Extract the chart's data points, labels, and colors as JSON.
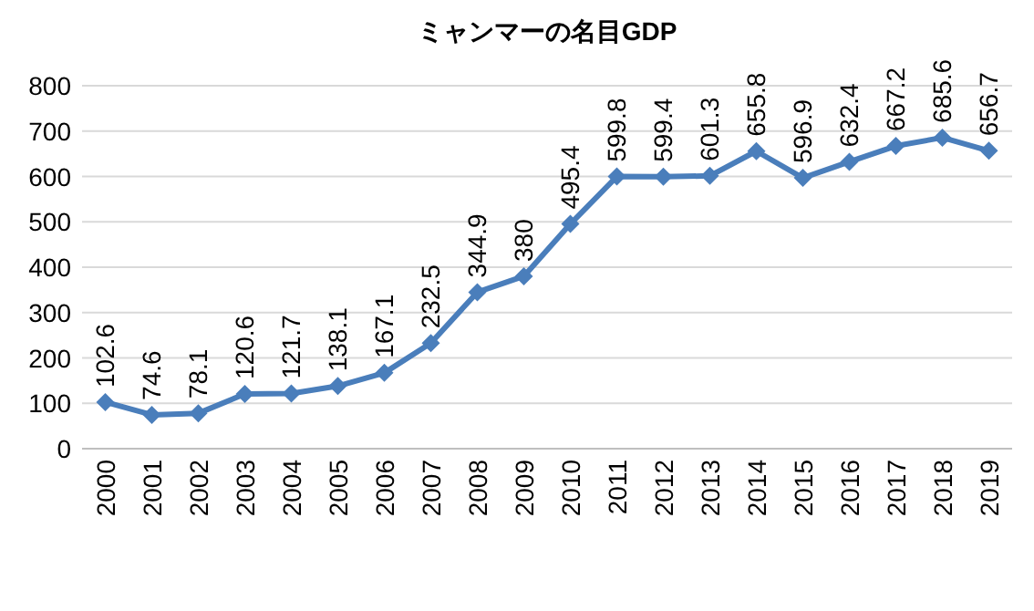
{
  "chart_data": {
    "type": "line",
    "title": "ミャンマーの名目GDP",
    "categories": [
      "2000",
      "2001",
      "2002",
      "2003",
      "2004",
      "2005",
      "2006",
      "2007",
      "2008",
      "2009",
      "2010",
      "2011",
      "2012",
      "2013",
      "2014",
      "2015",
      "2016",
      "2017",
      "2018",
      "2019"
    ],
    "series": [
      {
        "color": "#4a7ebb",
        "values": [
          102.6,
          74.6,
          78.1,
          120.6,
          121.7,
          138.1,
          167.1,
          232.5,
          344.9,
          380,
          495.4,
          599.8,
          599.4,
          601.3,
          655.8,
          596.9,
          632.4,
          667.2,
          685.6,
          656.7
        ]
      }
    ],
    "ylim": [
      0,
      800
    ],
    "yticks": [
      0,
      100,
      200,
      300,
      400,
      500,
      600,
      700,
      800
    ],
    "grid": "y",
    "marker": "diamond",
    "data_labels": true
  }
}
